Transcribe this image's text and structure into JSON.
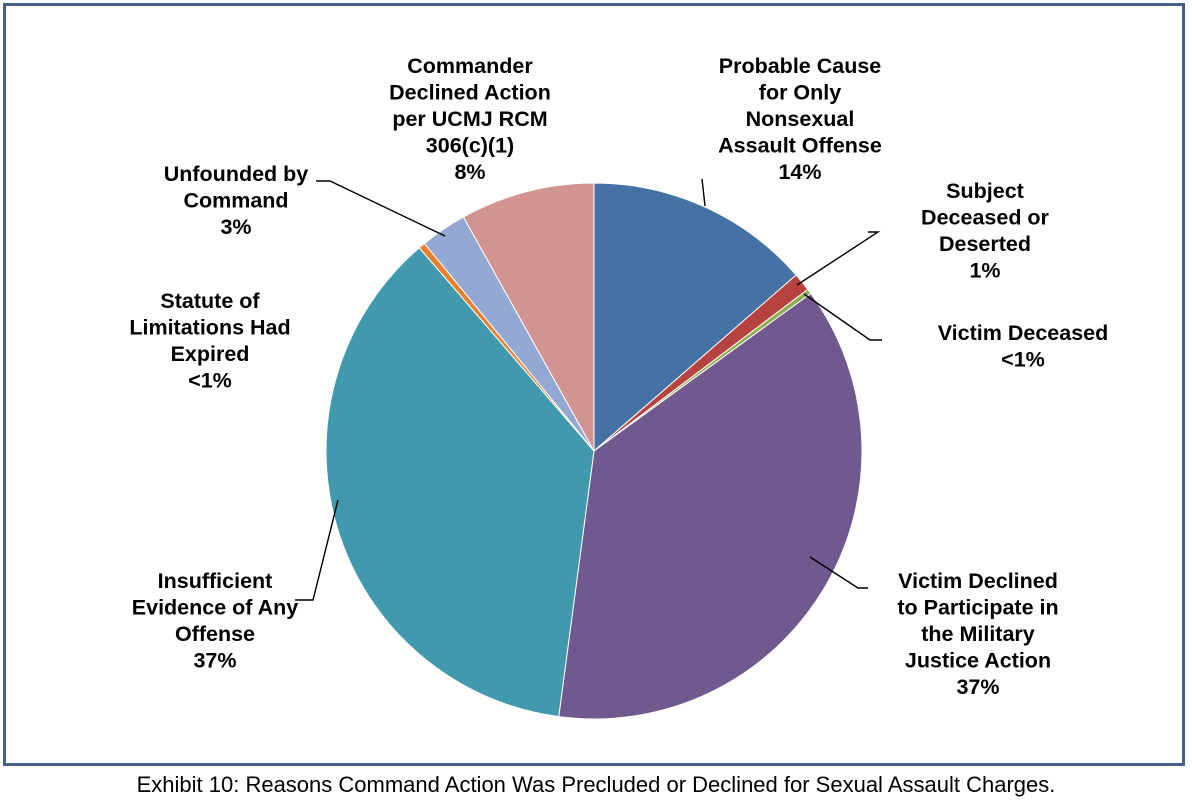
{
  "caption": "Exhibit 10: Reasons Command Action Was Precluded or Declined for Sexual Assault Charges.",
  "chart_data": {
    "type": "pie",
    "title": "",
    "slices": [
      {
        "name": "Probable Cause for Only Nonsexual Assault Offense",
        "lines": [
          "Probable Cause",
          "for Only",
          "Nonsexual",
          "Assault Offense"
        ],
        "pct_label": "14%",
        "value": 13.6,
        "color": "#4472a4"
      },
      {
        "name": "Subject Deceased or Deserted",
        "lines": [
          "Subject",
          "Deceased or",
          "Deserted"
        ],
        "pct_label": "1%",
        "value": 1.1,
        "color": "#b64340"
      },
      {
        "name": "Victim Deceased",
        "lines": [
          "Victim Deceased"
        ],
        "pct_label": "<1%",
        "value": 0.3,
        "color": "#8fab4f"
      },
      {
        "name": "Victim Declined to Participate in the Military Justice Action",
        "lines": [
          "Victim Declined",
          "to Participate in",
          "the Military",
          "Justice Action"
        ],
        "pct_label": "37%",
        "value": 37.1,
        "color": "#71588f"
      },
      {
        "name": "Insufficient Evidence of Any Offense",
        "lines": [
          "Insufficient",
          "Evidence of Any",
          "Offense"
        ],
        "pct_label": "37%",
        "value": 36.6,
        "color": "#4099ad"
      },
      {
        "name": "Statute of Limitations Had Expired",
        "lines": [
          "Statute of",
          "Limitations Had",
          "Expired"
        ],
        "pct_label": "<1%",
        "value": 0.4,
        "color": "#e8802c"
      },
      {
        "name": "Unfounded by Command",
        "lines": [
          "Unfounded by",
          "Command"
        ],
        "pct_label": "3%",
        "value": 2.8,
        "color": "#93a8d2"
      },
      {
        "name": "Commander Declined Action per UCMJ RCM 306(c)(1)",
        "lines": [
          "Commander",
          "Declined Action",
          "per UCMJ RCM",
          "306(c)(1)"
        ],
        "pct_label": "8%",
        "value": 8.1,
        "color": "#d19491"
      }
    ]
  }
}
